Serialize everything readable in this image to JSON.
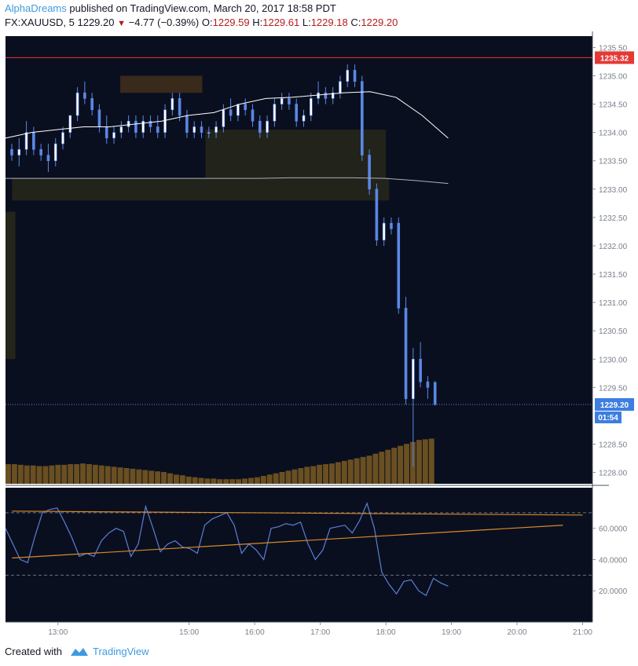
{
  "header": {
    "author": "AlphaDreams",
    "published_text": " published on TradingView.com, March 20, 2017 18:58 PDT",
    "symbol": "FX:XAUUSD, 5",
    "last": "1229.20",
    "change": "−4.77 (−0.39%)",
    "o_label": "O:",
    "o_val": "1229.59",
    "h_label": "H:",
    "h_val": "1229.61",
    "l_label": "L:",
    "l_val": "1229.18",
    "c_label": "C:",
    "c_val": "1229.20"
  },
  "footer": {
    "created_with": "Created with",
    "brand": "TradingView"
  },
  "colors": {
    "background": "#0a0f1f",
    "candle": "#5b87e6",
    "volume": "#7a5a22",
    "ma_fast": "#ffffff",
    "ma_slow": "#aab0bb",
    "red_line": "#e53935",
    "rsi": "#5b7fd6",
    "trendline": "#d88a2a",
    "zone_upper": "#3a2a1c",
    "zone_lower": "#25261a"
  },
  "chart_data": {
    "type": "candlestick",
    "symbol": "FX:XAUUSD",
    "interval": "5",
    "price_axis": {
      "ticks": [
        "1235.50",
        "1235.00",
        "1234.50",
        "1234.00",
        "1233.50",
        "1233.00",
        "1232.50",
        "1232.00",
        "1231.50",
        "1231.00",
        "1230.50",
        "1230.00",
        "1229.50",
        "1228.50",
        "1228.00"
      ],
      "range": [
        1227.8,
        1235.7
      ]
    },
    "time_axis": {
      "labels": [
        "13:00",
        "15:00",
        "16:00",
        "17:00",
        "18:00",
        "19:00",
        "20:00",
        "21:00"
      ],
      "label_times": [
        13,
        15,
        16,
        17,
        18,
        19,
        20,
        21
      ],
      "range_hours": [
        12.2,
        21.15
      ]
    },
    "price_labels": {
      "red_line": "1235.32",
      "last_price": "1229.20",
      "countdown": "01:54"
    },
    "ohlc": [
      [
        1233.7,
        1233.8,
        1233.5,
        1233.6
      ],
      [
        1233.6,
        1233.9,
        1233.4,
        1233.7
      ],
      [
        1233.7,
        1234.2,
        1233.6,
        1234.0
      ],
      [
        1234.0,
        1234.1,
        1233.6,
        1233.7
      ],
      [
        1233.7,
        1233.8,
        1233.5,
        1233.6
      ],
      [
        1233.6,
        1233.8,
        1233.3,
        1233.5
      ],
      [
        1233.5,
        1233.9,
        1233.4,
        1233.8
      ],
      [
        1233.8,
        1234.1,
        1233.7,
        1234.0
      ],
      [
        1234.0,
        1234.3,
        1233.9,
        1234.3
      ],
      [
        1234.3,
        1234.8,
        1234.2,
        1234.7
      ],
      [
        1234.7,
        1234.9,
        1234.5,
        1234.6
      ],
      [
        1234.6,
        1234.7,
        1234.3,
        1234.4
      ],
      [
        1234.4,
        1234.5,
        1234.0,
        1234.1
      ],
      [
        1234.1,
        1234.3,
        1233.8,
        1233.9
      ],
      [
        1233.9,
        1234.1,
        1233.8,
        1234.0
      ],
      [
        1234.0,
        1234.2,
        1233.9,
        1234.1
      ],
      [
        1234.1,
        1234.3,
        1234.0,
        1234.2
      ],
      [
        1234.2,
        1234.3,
        1233.9,
        1234.0
      ],
      [
        1234.0,
        1234.3,
        1233.9,
        1234.2
      ],
      [
        1234.2,
        1234.3,
        1234.0,
        1234.1
      ],
      [
        1234.1,
        1234.3,
        1233.9,
        1234.0
      ],
      [
        1234.0,
        1234.5,
        1233.9,
        1234.4
      ],
      [
        1234.4,
        1234.7,
        1234.3,
        1234.6
      ],
      [
        1234.6,
        1234.7,
        1234.2,
        1234.3
      ],
      [
        1234.3,
        1234.4,
        1233.9,
        1234.0
      ],
      [
        1234.0,
        1234.2,
        1233.9,
        1234.1
      ],
      [
        1234.1,
        1234.2,
        1233.9,
        1234.0
      ],
      [
        1234.0,
        1234.1,
        1233.9,
        1234.0
      ],
      [
        1234.0,
        1234.2,
        1233.9,
        1234.1
      ],
      [
        1234.1,
        1234.5,
        1234.0,
        1234.4
      ],
      [
        1234.4,
        1234.6,
        1234.2,
        1234.3
      ],
      [
        1234.3,
        1234.5,
        1234.2,
        1234.5
      ],
      [
        1234.5,
        1234.6,
        1234.3,
        1234.4
      ],
      [
        1234.4,
        1234.5,
        1234.1,
        1234.2
      ],
      [
        1234.2,
        1234.3,
        1233.9,
        1234.0
      ],
      [
        1234.0,
        1234.3,
        1233.9,
        1234.2
      ],
      [
        1234.2,
        1234.6,
        1234.1,
        1234.5
      ],
      [
        1234.5,
        1234.7,
        1234.4,
        1234.6
      ],
      [
        1234.6,
        1234.7,
        1234.4,
        1234.5
      ],
      [
        1234.5,
        1234.6,
        1234.1,
        1234.2
      ],
      [
        1234.2,
        1234.4,
        1234.1,
        1234.3
      ],
      [
        1234.3,
        1234.7,
        1234.2,
        1234.6
      ],
      [
        1234.6,
        1234.9,
        1234.5,
        1234.7
      ],
      [
        1234.7,
        1234.8,
        1234.5,
        1234.6
      ],
      [
        1234.6,
        1234.8,
        1234.5,
        1234.7
      ],
      [
        1234.7,
        1235.0,
        1234.6,
        1234.9
      ],
      [
        1234.9,
        1235.2,
        1234.8,
        1235.1
      ],
      [
        1235.1,
        1235.2,
        1234.8,
        1234.9
      ],
      [
        1234.9,
        1235.0,
        1233.5,
        1233.6
      ],
      [
        1233.6,
        1233.7,
        1232.9,
        1233.0
      ],
      [
        1233.0,
        1233.1,
        1232.0,
        1232.1
      ],
      [
        1232.1,
        1232.5,
        1232.0,
        1232.4
      ],
      [
        1232.4,
        1232.5,
        1232.2,
        1232.3
      ],
      [
        1232.4,
        1232.5,
        1230.8,
        1230.9
      ],
      [
        1230.9,
        1231.1,
        1229.2,
        1229.3
      ],
      [
        1229.3,
        1230.2,
        1228.1,
        1230.0
      ],
      [
        1230.0,
        1230.3,
        1229.5,
        1229.6
      ],
      [
        1229.6,
        1229.7,
        1229.3,
        1229.5
      ],
      [
        1229.59,
        1229.61,
        1229.18,
        1229.2
      ]
    ],
    "moving_average_fast": [
      1233.9,
      1234.0,
      1234.05,
      1234.1,
      1234.1,
      1234.15,
      1234.2,
      1234.3,
      1234.35,
      1234.5,
      1234.6,
      1234.62,
      1234.66,
      1234.7,
      1234.72,
      1234.62,
      1234.3,
      1233.9
    ],
    "moving_average_slow": [
      1233.19,
      1233.19,
      1233.19,
      1233.19,
      1233.19,
      1233.19,
      1233.19,
      1233.19,
      1233.19,
      1233.2,
      1233.2,
      1233.2,
      1233.19,
      1233.15,
      1233.1
    ],
    "volume": [
      30,
      30,
      29,
      28,
      28,
      27,
      27,
      28,
      29,
      29,
      30,
      30,
      31,
      30,
      29,
      28,
      27,
      26,
      25,
      24,
      23,
      22,
      21,
      20,
      19,
      18,
      16,
      14,
      13,
      11,
      10,
      9,
      8,
      8,
      7,
      7,
      7,
      7,
      8,
      9,
      10,
      12,
      14,
      16,
      18,
      20,
      22,
      24,
      26,
      27,
      29,
      30,
      31,
      33,
      35,
      37,
      39,
      41,
      43,
      46,
      49,
      52,
      55,
      58,
      61,
      64,
      67,
      68,
      69
    ],
    "rsi": {
      "ticks": [
        "60.0000",
        "40.0000",
        "20.0000"
      ],
      "range": [
        0,
        86
      ],
      "upper_band": 70,
      "lower_band": 30,
      "values": [
        60,
        50,
        40,
        38,
        55,
        70,
        72,
        73,
        64,
        54,
        42,
        44,
        42,
        52,
        57,
        60,
        58,
        42,
        50,
        74,
        60,
        45,
        50,
        52,
        48,
        47,
        44,
        62,
        66,
        68,
        70,
        62,
        44,
        50,
        46,
        40,
        60,
        61,
        63,
        62,
        64,
        50,
        40,
        46,
        60,
        61,
        62,
        57,
        65,
        76,
        60,
        32,
        24,
        18,
        26,
        27,
        20,
        17,
        28,
        25,
        23
      ],
      "trendline_upper": [
        [
          12.3,
          71
        ],
        [
          21.0,
          68.5
        ]
      ],
      "trendline_lower": [
        [
          12.3,
          41
        ],
        [
          20.7,
          62
        ]
      ]
    }
  }
}
